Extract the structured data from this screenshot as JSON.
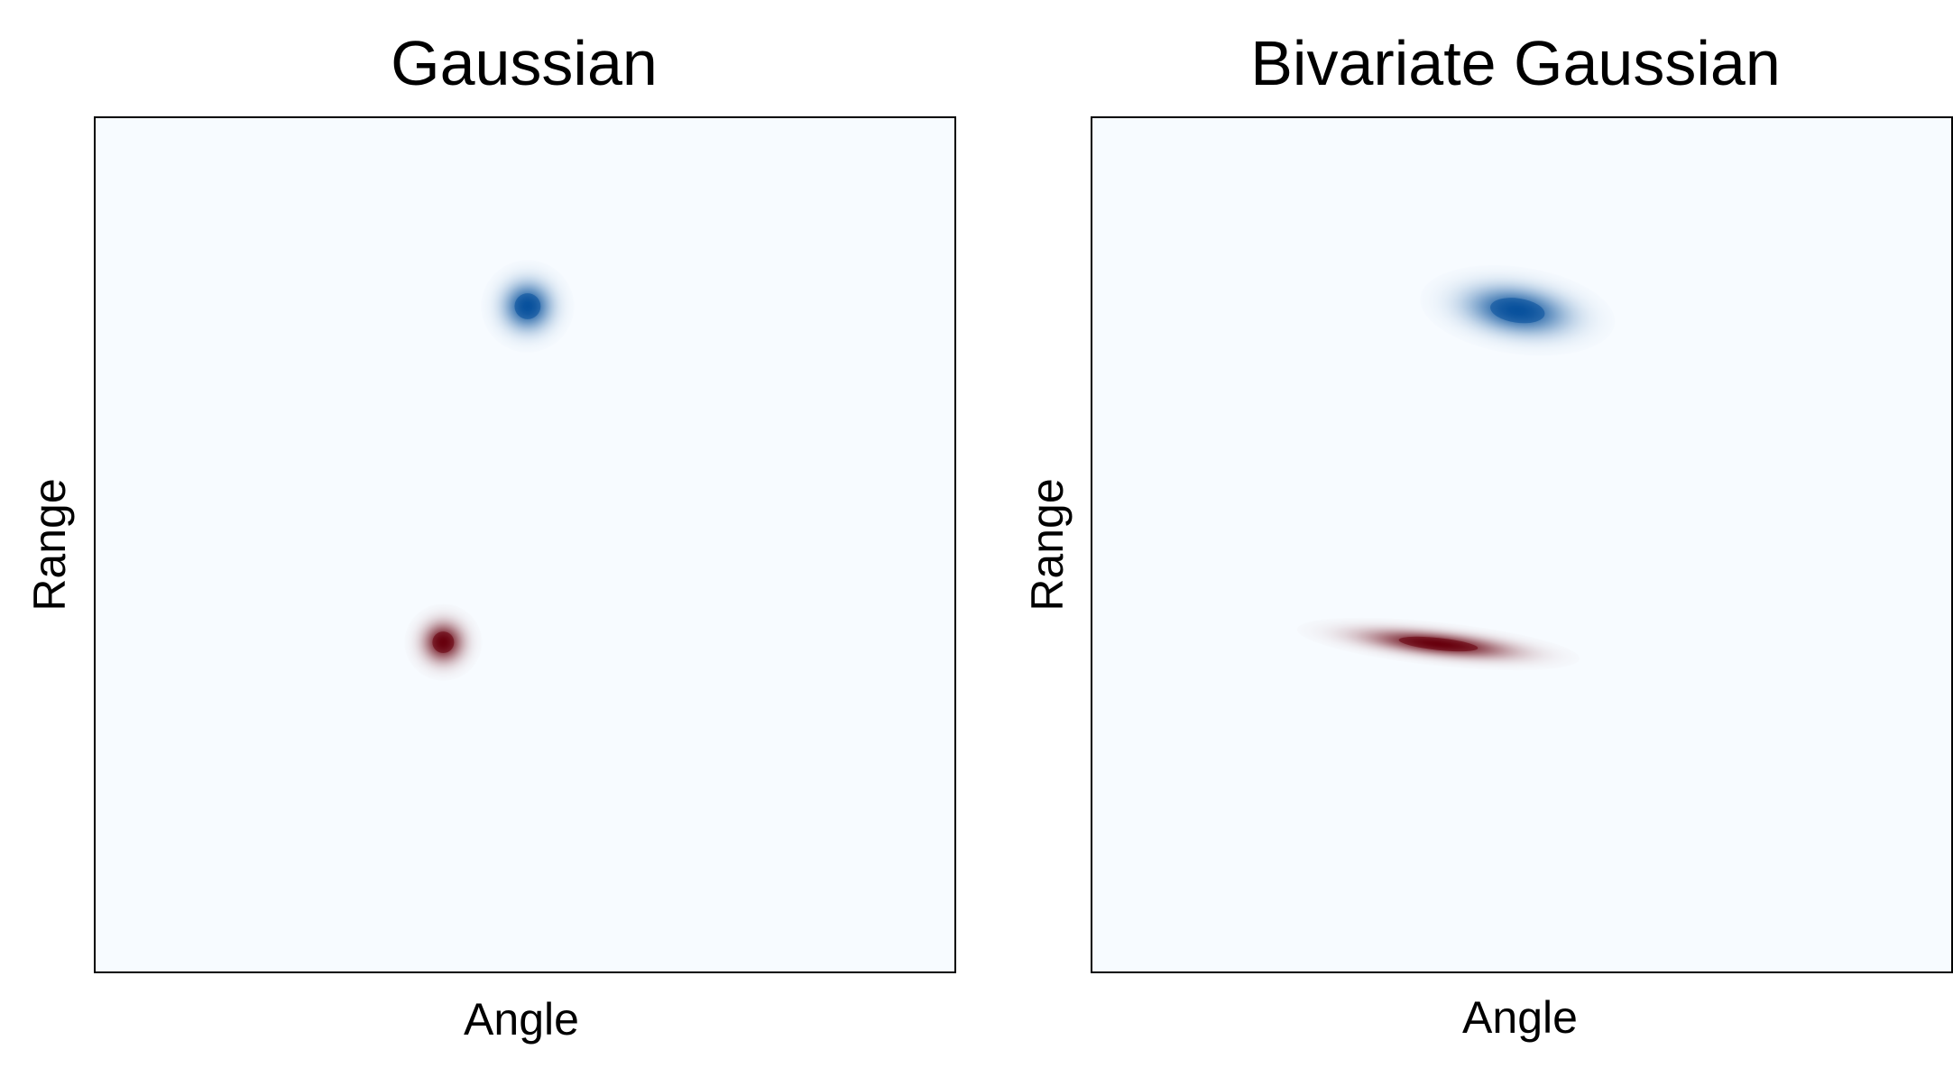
{
  "chart_data": [
    {
      "type": "heatmap",
      "title": "Gaussian",
      "xlabel": "Angle",
      "ylabel": "Range",
      "xlim": [
        0,
        1
      ],
      "ylim": [
        0,
        1
      ],
      "grid": false,
      "ticks": false,
      "background_color": "#f7fbff",
      "blobs": [
        {
          "color": "#08519c",
          "cx": 0.503,
          "cy": 0.779,
          "sx": 0.018,
          "sy": 0.018,
          "rotation_deg": 0
        },
        {
          "color": "#67000d",
          "cx": 0.405,
          "cy": 0.386,
          "sx": 0.015,
          "sy": 0.015,
          "rotation_deg": 0
        }
      ]
    },
    {
      "type": "heatmap",
      "title": "Bivariate Gaussian",
      "xlabel": "Angle",
      "ylabel": "Range",
      "xlim": [
        0,
        1
      ],
      "ylim": [
        0,
        1
      ],
      "grid": false,
      "ticks": false,
      "background_color": "#f7fbff",
      "blobs": [
        {
          "color": "#08519c",
          "cx": 0.495,
          "cy": 0.774,
          "sx": 0.038,
          "sy": 0.017,
          "rotation_deg": 8
        },
        {
          "color": "#67000d",
          "cx": 0.403,
          "cy": 0.384,
          "sx": 0.055,
          "sy": 0.0085,
          "rotation_deg": 6
        }
      ]
    }
  ]
}
